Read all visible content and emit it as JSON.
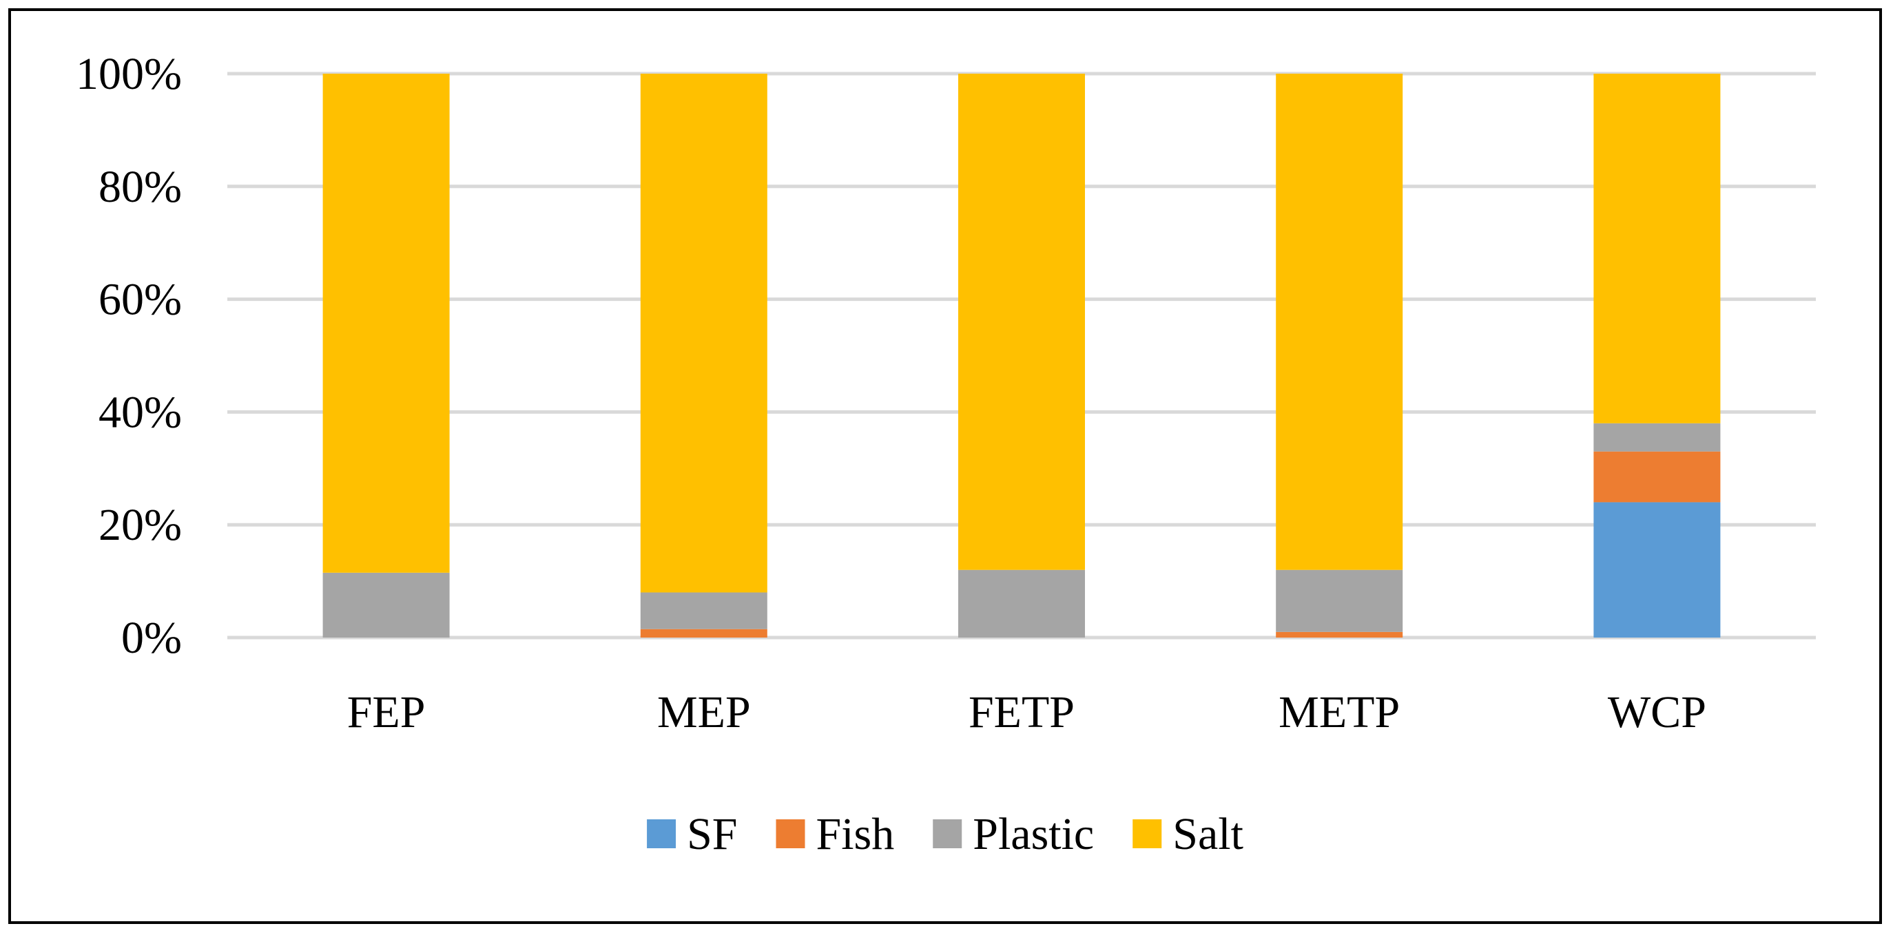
{
  "chart_data": {
    "type": "bar",
    "stacked": true,
    "percent_stacked": true,
    "title": "",
    "xlabel": "",
    "ylabel": "",
    "categories": [
      "FEP",
      "MEP",
      "FETP",
      "METP",
      "WCP"
    ],
    "ylim": [
      0,
      100
    ],
    "y_ticks": [
      "0%",
      "20%",
      "40%",
      "60%",
      "80%",
      "100%"
    ],
    "grid": true,
    "legend_position": "bottom",
    "series": [
      {
        "name": "SF",
        "color": "#5B9BD5",
        "values": [
          0,
          0,
          0,
          0,
          24
        ]
      },
      {
        "name": "Fish",
        "color": "#ED7D31",
        "values": [
          0,
          1.5,
          0,
          1,
          9
        ]
      },
      {
        "name": "Plastic",
        "color": "#A5A5A5",
        "values": [
          11.5,
          6.5,
          12,
          11,
          5
        ]
      },
      {
        "name": "Salt",
        "color": "#FFC000",
        "values": [
          88.5,
          92,
          88,
          88,
          62
        ]
      }
    ]
  }
}
